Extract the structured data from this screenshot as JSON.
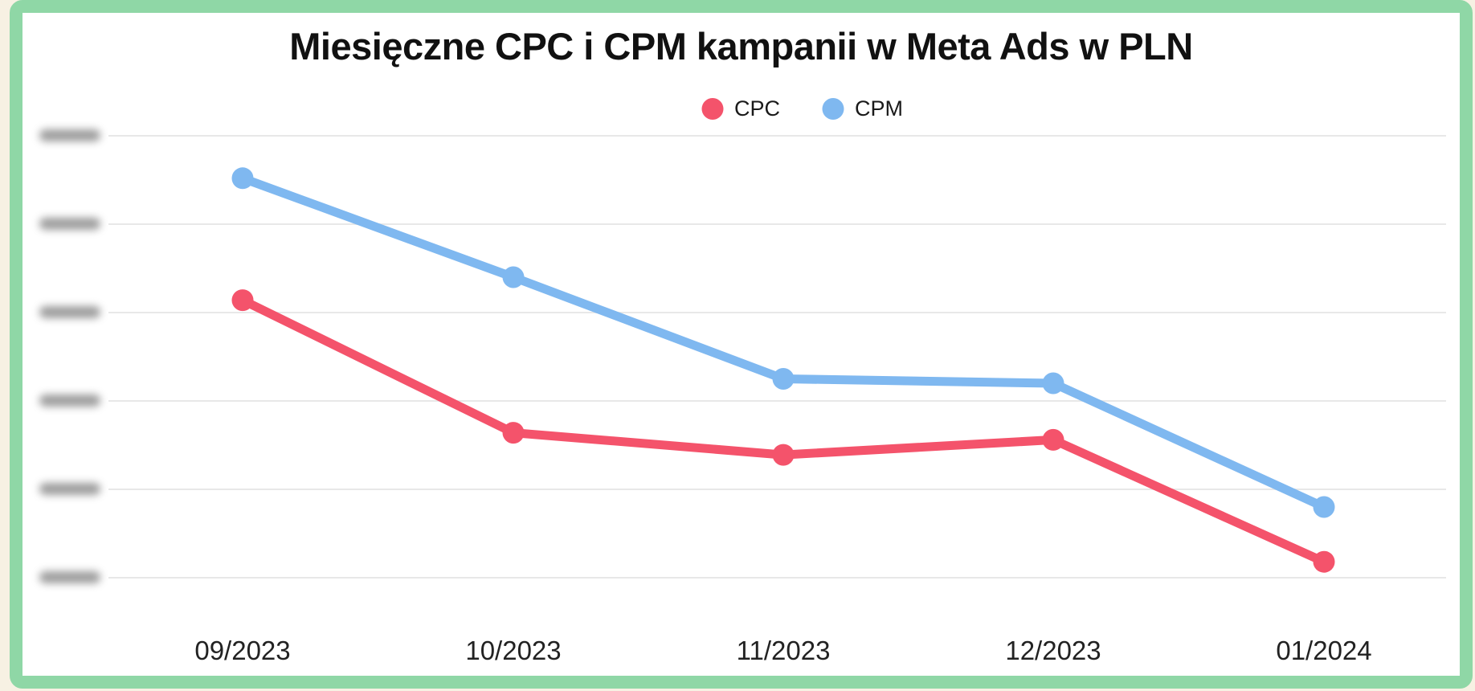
{
  "frame": {
    "page_background": "#F7F1E3",
    "border_color": "#8FD7A6",
    "card_background": "#FFFFFF"
  },
  "chart_data": {
    "type": "line",
    "title": "Miesięczne CPC i CPM kampanii w Meta Ads w PLN",
    "categories": [
      "09/2023",
      "10/2023",
      "11/2023",
      "12/2023",
      "01/2024"
    ],
    "series": [
      {
        "name": "CPC",
        "color": "#F4536B",
        "values": [
          3.14,
          1.64,
          1.39,
          1.56,
          0.18
        ]
      },
      {
        "name": "CPM",
        "color": "#7FB8F0",
        "values": [
          4.52,
          3.4,
          2.25,
          2.2,
          0.8
        ]
      }
    ],
    "y_axis": {
      "gridline_count": 6,
      "tick_labels_redacted": true,
      "value_scale": "gridline units: 0 = bottom gridline, 5 = top gridline (numeric tick labels are blurred in source)"
    },
    "x_axis": {
      "label_color": "#222222"
    },
    "grid": "horizontal",
    "gridline_color": "#E8E8E8",
    "legend": {
      "position": "top",
      "items": [
        {
          "label": "CPC",
          "color": "#F4536B"
        },
        {
          "label": "CPM",
          "color": "#7FB8F0"
        }
      ]
    }
  }
}
